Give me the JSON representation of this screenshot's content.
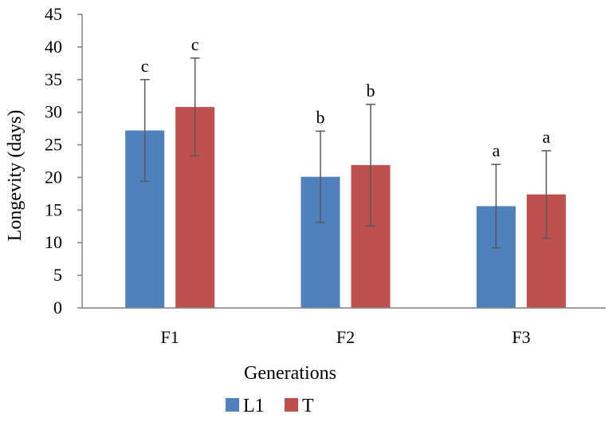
{
  "chart_data": {
    "type": "bar",
    "title": "",
    "xlabel": "Generations",
    "ylabel": "Longevity (days)",
    "ylim": [
      0,
      45
    ],
    "yticks": [
      0,
      5,
      10,
      15,
      20,
      25,
      30,
      35,
      40,
      45
    ],
    "categories": [
      "F1",
      "F2",
      "F3"
    ],
    "legend_position": "bottom",
    "grid": false,
    "series": [
      {
        "name": "L1",
        "color": "#4F81BD",
        "values": [
          27.2,
          20.1,
          15.6
        ],
        "errors": [
          7.8,
          7.0,
          6.4
        ],
        "labels": [
          "c",
          "b",
          "a"
        ]
      },
      {
        "name": "T",
        "color": "#C0504D",
        "values": [
          30.8,
          21.9,
          17.4
        ],
        "errors": [
          7.5,
          9.3,
          6.7
        ],
        "labels": [
          "c",
          "b",
          "a"
        ]
      }
    ]
  }
}
